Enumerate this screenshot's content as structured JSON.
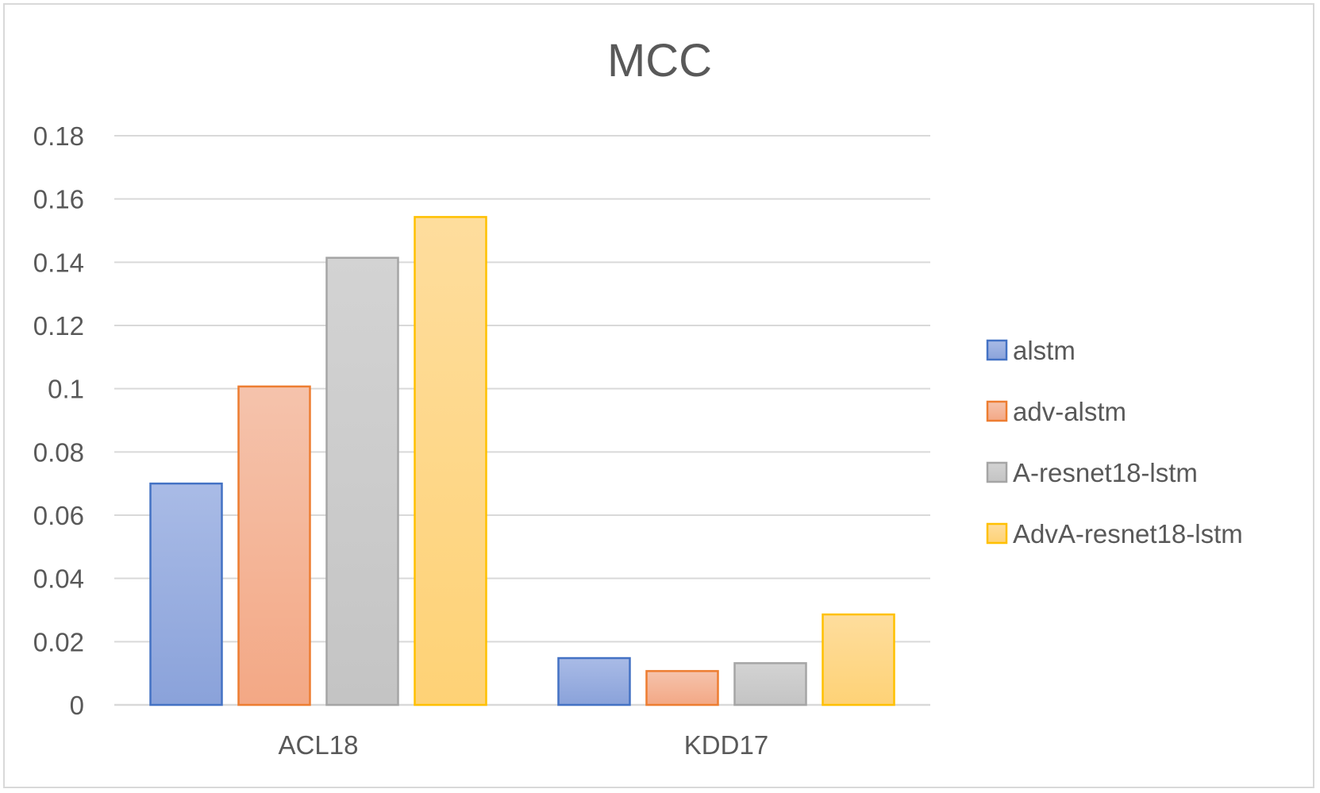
{
  "chart_data": {
    "type": "bar",
    "title": "MCC",
    "xlabel": "",
    "ylabel": "",
    "categories": [
      "ACL18",
      "KDD17"
    ],
    "series": [
      {
        "name": "alstm",
        "values": [
          0.07,
          0.0148
        ],
        "fill_top": "#a9bbe6",
        "fill_bottom": "#8aa2da",
        "stroke": "#4472c4"
      },
      {
        "name": "adv-alstm",
        "values": [
          0.1007,
          0.0107
        ],
        "fill_top": "#f5c3ac",
        "fill_bottom": "#f3a885",
        "stroke": "#ed7d31"
      },
      {
        "name": "A-resnet18-lstm",
        "values": [
          0.1414,
          0.0132
        ],
        "fill_top": "#d3d3d3",
        "fill_bottom": "#c4c4c4",
        "stroke": "#a5a5a5"
      },
      {
        "name": "AdvA-resnet18-lstm",
        "values": [
          0.1543,
          0.0286
        ],
        "fill_top": "#fedd9d",
        "fill_bottom": "#fed276",
        "stroke": "#ffc000"
      }
    ],
    "ylim": [
      0,
      0.18
    ],
    "yticks": [
      "0",
      "0.02",
      "0.04",
      "0.06",
      "0.08",
      "0.1",
      "0.12",
      "0.14",
      "0.16",
      "0.18"
    ],
    "ytick_values": [
      0,
      0.02,
      0.04,
      0.06,
      0.08,
      0.1,
      0.12,
      0.14,
      0.16,
      0.18
    ],
    "grid": true,
    "gridline_color": "#d9d9d9",
    "legend_position": "right",
    "text_color": "#595959"
  }
}
